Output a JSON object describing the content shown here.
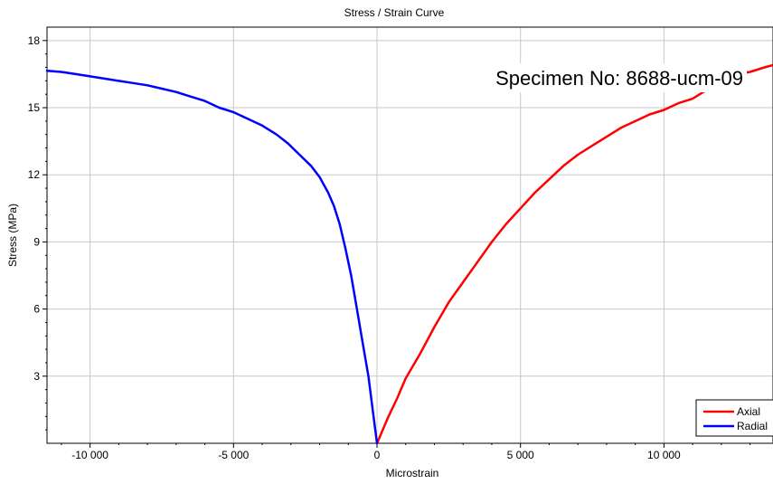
{
  "chart_data": {
    "type": "line",
    "title": "Stress / Strain Curve",
    "xlabel": "Microstrain",
    "ylabel": "Stress (MPa)",
    "xlim": [
      -11500,
      13800
    ],
    "ylim": [
      0,
      18.6
    ],
    "xticks": [
      -10000,
      -5000,
      0,
      5000,
      10000
    ],
    "xtick_labels": [
      "-10 000",
      "-5 000",
      "0",
      "5 000",
      "10 000"
    ],
    "yticks": [
      3,
      6,
      9,
      12,
      15,
      18
    ],
    "ytick_labels": [
      "3",
      "6",
      "9",
      "12",
      "15",
      "18"
    ],
    "grid": true,
    "legend_position": "bottom-right",
    "annotation": "Specimen No: 8688-ucm-09",
    "series": [
      {
        "name": "Axial",
        "color": "#ff0000",
        "x": [
          0,
          200,
          400,
          700,
          1000,
          1500,
          2000,
          2500,
          3000,
          3500,
          4000,
          4500,
          5000,
          5500,
          6000,
          6500,
          7000,
          7500,
          8000,
          8500,
          9000,
          9500,
          10000,
          10500,
          11000,
          11500,
          12000,
          12500,
          13000,
          13500,
          13800
        ],
        "y": [
          0,
          0.6,
          1.2,
          2.0,
          2.9,
          4.0,
          5.2,
          6.3,
          7.2,
          8.1,
          9.0,
          9.8,
          10.5,
          11.2,
          11.8,
          12.4,
          12.9,
          13.3,
          13.7,
          14.1,
          14.4,
          14.7,
          14.9,
          15.2,
          15.4,
          15.8,
          16.2,
          16.5,
          16.6,
          16.8,
          16.9
        ]
      },
      {
        "name": "Radial",
        "color": "#0000ff",
        "x": [
          0,
          -150,
          -300,
          -500,
          -700,
          -900,
          -1100,
          -1300,
          -1500,
          -1700,
          -2000,
          -2300,
          -2700,
          -3100,
          -3500,
          -4000,
          -4500,
          -5000,
          -5500,
          -6000,
          -6500,
          -7000,
          -7500,
          -8000,
          -8500,
          -9000,
          -9500,
          -10000,
          -10500,
          -11000,
          -11500
        ],
        "y": [
          0,
          1.5,
          3.0,
          4.5,
          6.0,
          7.5,
          8.7,
          9.8,
          10.6,
          11.2,
          11.9,
          12.4,
          12.9,
          13.4,
          13.8,
          14.2,
          14.5,
          14.8,
          15.0,
          15.3,
          15.5,
          15.7,
          15.85,
          16.0,
          16.1,
          16.2,
          16.3,
          16.4,
          16.5,
          16.6,
          16.65
        ]
      }
    ]
  }
}
